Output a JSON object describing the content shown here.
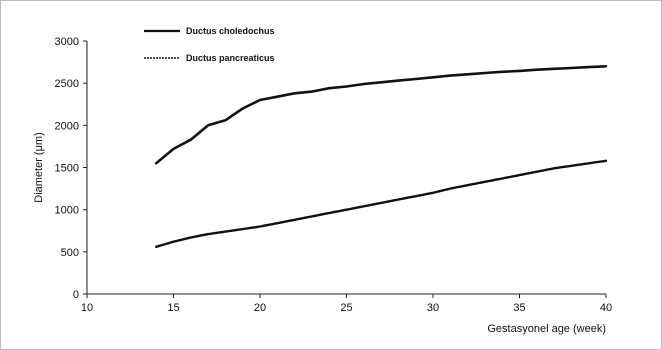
{
  "chart_data": {
    "type": "line",
    "xlabel": "Gestasyonel age (week)",
    "ylabel": "Diameter (μm)",
    "xlim": [
      10,
      40
    ],
    "ylim": [
      0,
      3000
    ],
    "xticks": [
      10,
      15,
      20,
      25,
      30,
      35,
      40
    ],
    "yticks": [
      0,
      500,
      1000,
      1500,
      2000,
      2500,
      3000
    ],
    "grid": false,
    "legend_position": "top-left",
    "series": [
      {
        "name": "Ductus choledochus",
        "style": "solid",
        "color": "#111111",
        "x": [
          14,
          15,
          16,
          17,
          18,
          19,
          20,
          21,
          22,
          23,
          24,
          25,
          26,
          27,
          28,
          29,
          30,
          31,
          32,
          33,
          34,
          35,
          36,
          37,
          38,
          39,
          40
        ],
        "y": [
          1550,
          1720,
          1830,
          2000,
          2060,
          2200,
          2300,
          2340,
          2380,
          2400,
          2440,
          2460,
          2490,
          2510,
          2530,
          2550,
          2570,
          2590,
          2605,
          2620,
          2635,
          2645,
          2660,
          2670,
          2680,
          2690,
          2700
        ]
      },
      {
        "name": "Ductus pancreaticus",
        "style": "dashed",
        "color": "#111111",
        "x": [
          14,
          15,
          16,
          17,
          18,
          19,
          20,
          21,
          22,
          23,
          24,
          25,
          26,
          27,
          28,
          29,
          30,
          31,
          32,
          33,
          34,
          35,
          36,
          37,
          38,
          39,
          40
        ],
        "y": [
          560,
          620,
          670,
          710,
          740,
          770,
          800,
          840,
          880,
          920,
          960,
          1000,
          1040,
          1080,
          1120,
          1160,
          1200,
          1250,
          1290,
          1330,
          1370,
          1410,
          1450,
          1490,
          1520,
          1550,
          1580
        ]
      }
    ]
  }
}
